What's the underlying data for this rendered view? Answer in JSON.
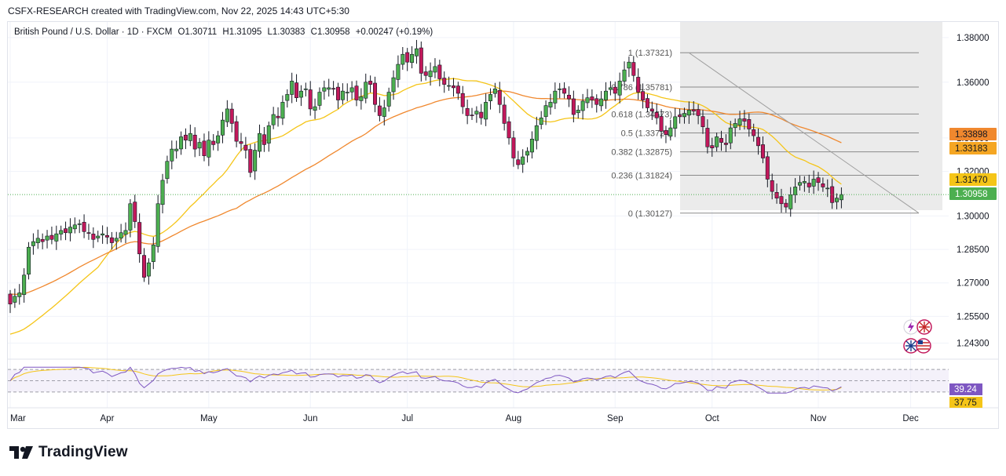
{
  "caption": "CSFX-RESEARCH created with TradingView.com, Nov 22, 2025 14:43 UTC+5:30",
  "symbol": {
    "name": "British Pound / U.S. Dollar · 1D · FXCM",
    "open_text": "O1.30711",
    "high_text": "H1.31095",
    "low_text": "L1.30383",
    "close_text": "C1.30958",
    "change_text": "+0.00247 (+0.19%)"
  },
  "brand": "TradingView",
  "colors": {
    "up": "#26a69a",
    "up_fill": "#4caf50",
    "down": "#c2185b",
    "ma_fast": "#f5c518",
    "ma_slow": "#f0882e",
    "rsi": "#7e57c2",
    "rsi_ma": "#f5c518",
    "last_price": "#4caf50"
  },
  "chart_data": {
    "type": "candlestick",
    "title": "British Pound / U.S. Dollar · 1D · FXCM",
    "price_axis": {
      "ylim": [
        1.2365,
        1.387
      ],
      "ticks": [
        "1.38000",
        "1.36000",
        "1.33500",
        "1.32000",
        "1.30000",
        "1.28500",
        "1.27000",
        "1.25500",
        "1.24300"
      ],
      "tick_values": [
        1.38,
        1.36,
        1.335,
        1.32,
        1.3,
        1.285,
        1.27,
        1.255,
        1.243
      ]
    },
    "time_axis": {
      "labels": [
        "Mar",
        "Apr",
        "May",
        "Jun",
        "Jul",
        "Aug",
        "Sep",
        "Oct",
        "Nov",
        "Dec"
      ],
      "label_day_index": [
        0,
        21,
        43,
        65,
        86,
        109,
        131,
        152,
        175,
        195
      ]
    },
    "candles_close": [
      1.2605,
      1.264,
      1.2655,
      1.2735,
      1.286,
      1.2885,
      1.29,
      1.2885,
      1.291,
      1.2895,
      1.292,
      1.2935,
      1.2925,
      1.295,
      1.296,
      1.2965,
      1.293,
      1.2925,
      1.2895,
      1.291,
      1.292,
      1.2905,
      1.288,
      1.29,
      1.2925,
      1.2935,
      1.3055,
      1.2975,
      1.283,
      1.2725,
      1.279,
      1.287,
      1.3055,
      1.316,
      1.3245,
      1.33,
      1.33,
      1.3355,
      1.334,
      1.337,
      1.33,
      1.333,
      1.327,
      1.334,
      1.332,
      1.336,
      1.343,
      1.348,
      1.3415,
      1.3335,
      1.3325,
      1.3295,
      1.3195,
      1.3295,
      1.337,
      1.332,
      1.3405,
      1.3455,
      1.344,
      1.351,
      1.3545,
      1.3605,
      1.353,
      1.356,
      1.357,
      1.348,
      1.349,
      1.3555,
      1.3575,
      1.3575,
      1.357,
      1.352,
      1.356,
      1.3555,
      1.3575,
      1.352,
      1.3535,
      1.36,
      1.359,
      1.35,
      1.345,
      1.3485,
      1.3555,
      1.362,
      1.368,
      1.3725,
      1.369,
      1.3725,
      1.375,
      1.364,
      1.363,
      1.365,
      1.367,
      1.3615,
      1.359,
      1.3585,
      1.3575,
      1.355,
      1.349,
      1.345,
      1.345,
      1.347,
      1.344,
      1.351,
      1.3545,
      1.357,
      1.35,
      1.3415,
      1.335,
      1.326,
      1.323,
      1.3265,
      1.329,
      1.3345,
      1.3405,
      1.344,
      1.3495,
      1.351,
      1.356,
      1.357,
      1.355,
      1.3525,
      1.3455,
      1.3475,
      1.3515,
      1.353,
      1.352,
      1.35,
      1.3525,
      1.356,
      1.3575,
      1.355,
      1.3605,
      1.3655,
      1.369,
      1.363,
      1.3555,
      1.352,
      1.3485,
      1.347,
      1.344,
      1.338,
      1.3365,
      1.3395,
      1.3445,
      1.3445,
      1.346,
      1.3475,
      1.347,
      1.345,
      1.34,
      1.331,
      1.3305,
      1.3355,
      1.333,
      1.332,
      1.3395,
      1.3415,
      1.3435,
      1.3425,
      1.339,
      1.336,
      1.3315,
      1.326,
      1.3165,
      1.311,
      1.308,
      1.3055,
      1.304,
      1.3095,
      1.313,
      1.315,
      1.3155,
      1.313,
      1.3165,
      1.315,
      1.313,
      1.3125,
      1.306,
      1.308,
      1.3096
    ],
    "fibonacci": [
      {
        "label": "1 (1.37321)",
        "value": 1.37321
      },
      {
        "label": "0.786 (1.35781)",
        "value": 1.35781
      },
      {
        "label": "0.618 (1.34573)",
        "value": 1.34573
      },
      {
        "label": "0.5 (1.33724)",
        "value": 1.33724
      },
      {
        "label": "0.382 (1.32875)",
        "value": 1.32875
      },
      {
        "label": "0.236 (1.31824)",
        "value": 1.31824
      },
      {
        "label": "0 (1.30127)",
        "value": 1.30127
      }
    ],
    "price_tags": [
      {
        "label": "1.33898",
        "value": 1.33898,
        "color": "#f0882e"
      },
      {
        "label": "1.33183",
        "value": 1.33183,
        "color": "#f5a623"
      },
      {
        "label": "1.31470",
        "value": 1.3147,
        "color": "#f5c518"
      },
      {
        "label": "1.30958",
        "value": 1.30958,
        "color": "#4caf50"
      }
    ],
    "rsi": {
      "value_label": "39.24",
      "ma_label": "37.75",
      "ylim": [
        20,
        80
      ],
      "bands": [
        70,
        50,
        30
      ]
    }
  }
}
